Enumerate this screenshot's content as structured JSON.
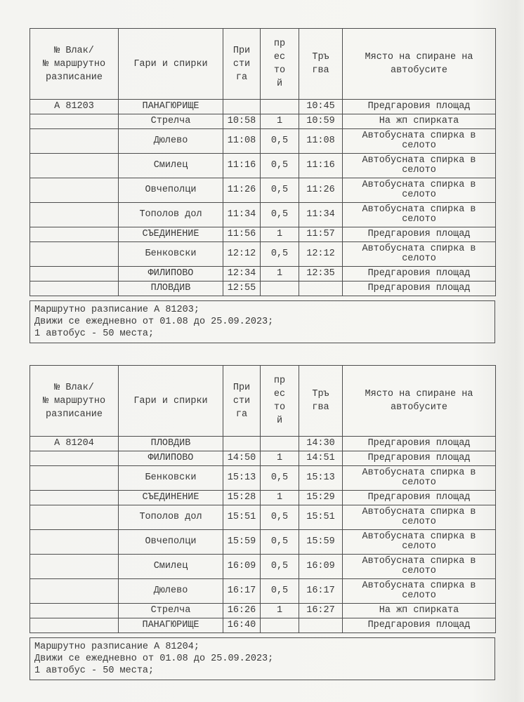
{
  "columns": {
    "train": "№ Влак/\n№ маршрутно\nразписание",
    "stops": "Гари и спирки",
    "arrive": "При\nсти\nга",
    "dwell": "пр\nес\nто\nй",
    "depart": "Тръ\nгва",
    "place": "Място на спиране на\nавтобусите"
  },
  "table1": {
    "route_id": "А 81203",
    "rows": [
      {
        "route": "А 81203",
        "station": "ПАНАГЮРИЩЕ",
        "arrive": "",
        "dwell": "",
        "depart": "10:45",
        "place": "Предгаровия площад"
      },
      {
        "route": "",
        "station": "Стрелча",
        "arrive": "10:58",
        "dwell": "1",
        "depart": "10:59",
        "place": "На жп спирката"
      },
      {
        "route": "",
        "station": "Дюлево",
        "arrive": "11:08",
        "dwell": "0,5",
        "depart": "11:08",
        "place": "Автобусната спирка в селото"
      },
      {
        "route": "",
        "station": "Смилец",
        "arrive": "11:16",
        "dwell": "0,5",
        "depart": "11:16",
        "place": "Автобусната спирка в селото"
      },
      {
        "route": "",
        "station": "Овчеполци",
        "arrive": "11:26",
        "dwell": "0,5",
        "depart": "11:26",
        "place": "Автобусната спирка в селото"
      },
      {
        "route": "",
        "station": "Тополов дол",
        "arrive": "11:34",
        "dwell": "0,5",
        "depart": "11:34",
        "place": "Автобусната спирка в селото"
      },
      {
        "route": "",
        "station": "СЪЕДИНЕНИЕ",
        "arrive": "11:56",
        "dwell": "1",
        "depart": "11:57",
        "place": "Предгаровия площад"
      },
      {
        "route": "",
        "station": "Бенковски",
        "arrive": "12:12",
        "dwell": "0,5",
        "depart": "12:12",
        "place": "Автобусната спирка в селото"
      },
      {
        "route": "",
        "station": "ФИЛИПОВО",
        "arrive": "12:34",
        "dwell": "1",
        "depart": "12:35",
        "place": "Предгаровия площад"
      },
      {
        "route": "",
        "station": "ПЛОВДИВ",
        "arrive": "12:55",
        "dwell": "",
        "depart": "",
        "place": "Предгаровия площад"
      }
    ],
    "notes": [
      "Маршрутно разписание А 81203;",
      "Движи се ежедневно от 01.08 до 25.09.2023;",
      "1 автобус - 50 места;"
    ]
  },
  "table2": {
    "route_id": "А 81204",
    "rows": [
      {
        "route": "А 81204",
        "station": "ПЛОВДИВ",
        "arrive": "",
        "dwell": "",
        "depart": "14:30",
        "place": "Предгаровия площад"
      },
      {
        "route": "",
        "station": "ФИЛИПОВО",
        "arrive": "14:50",
        "dwell": "1",
        "depart": "14:51",
        "place": "Предгаровия площад"
      },
      {
        "route": "",
        "station": "Бенковски",
        "arrive": "15:13",
        "dwell": "0,5",
        "depart": "15:13",
        "place": "Автобусната спирка в селото"
      },
      {
        "route": "",
        "station": "СЪЕДИНЕНИЕ",
        "arrive": "15:28",
        "dwell": "1",
        "depart": "15:29",
        "place": "Предгаровия площад"
      },
      {
        "route": "",
        "station": "Тополов дол",
        "arrive": "15:51",
        "dwell": "0,5",
        "depart": "15:51",
        "place": "Автобусната спирка в селото"
      },
      {
        "route": "",
        "station": "Овчеполци",
        "arrive": "15:59",
        "dwell": "0,5",
        "depart": "15:59",
        "place": "Автобусната спирка в селото"
      },
      {
        "route": "",
        "station": "Смилец",
        "arrive": "16:09",
        "dwell": "0,5",
        "depart": "16:09",
        "place": "Автобусната спирка в селото"
      },
      {
        "route": "",
        "station": "Дюлево",
        "arrive": "16:17",
        "dwell": "0,5",
        "depart": "16:17",
        "place": "Автобусната спирка в селото"
      },
      {
        "route": "",
        "station": "Стрелча",
        "arrive": "16:26",
        "dwell": "1",
        "depart": "16:27",
        "place": "На жп спирката"
      },
      {
        "route": "",
        "station": "ПАНАГЮРИЩЕ",
        "arrive": "16:40",
        "dwell": "",
        "depart": "",
        "place": "Предгаровия площад"
      }
    ],
    "notes": [
      "Маршрутно разписание А 81204;",
      "Движи се ежедневно от 01.08 до 25.09.2023;",
      "1 автобус - 50 места;"
    ]
  },
  "colors": {
    "paper": "#f5f5f2",
    "ink": "#383838",
    "border": "#4d4d4d"
  }
}
